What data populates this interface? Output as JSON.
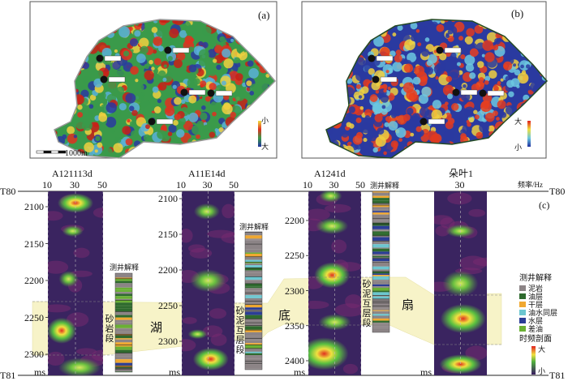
{
  "map_a": {
    "label": "(a)",
    "scale_label": "1000m",
    "colorbar_top": "小",
    "colorbar_bottom": "大"
  },
  "map_b": {
    "label": "(b)",
    "colorbar_top": "大",
    "colorbar_bottom": "小"
  },
  "section": {
    "label": "(c)",
    "top_horizon": "T80",
    "bottom_horizon": "T81",
    "freq_axis_label": "频率/Hz",
    "time_unit": "ms",
    "log_title": "测井解释",
    "facies": [
      "湖",
      "底",
      "扇"
    ],
    "wells": [
      {
        "name": "A121113d",
        "freq_ticks": [
          "10",
          "30",
          "50"
        ],
        "time_ticks": [
          "2100",
          "2150",
          "2200",
          "2250",
          "2300"
        ],
        "interval": "砂岩段"
      },
      {
        "name": "A11E14d",
        "freq_ticks": [
          "10",
          "30",
          "50"
        ],
        "time_ticks": [
          "2100",
          "2150",
          "2200",
          "2250",
          "2300"
        ],
        "interval": "砂泥互层段"
      },
      {
        "name": "A1241d",
        "freq_ticks": [
          "10",
          "30",
          "50"
        ],
        "time_ticks": [
          "2200",
          "2250",
          "2300",
          "2350",
          "2400"
        ],
        "interval": "砂泥互层段"
      },
      {
        "name": "朵叶1",
        "freq_ticks": [
          "30"
        ]
      }
    ]
  },
  "legend": {
    "title": "测井解释",
    "items": [
      {
        "label": "泥岩",
        "color": "#8c8486"
      },
      {
        "label": "油层",
        "color": "#2e6a2e"
      },
      {
        "label": "干层",
        "color": "#f0a830"
      },
      {
        "label": "油水同层",
        "color": "#6cc6d0"
      },
      {
        "label": "水层",
        "color": "#2b3d96"
      },
      {
        "label": "差油",
        "color": "#6ab034"
      }
    ],
    "colorbar_title": "时频剖面",
    "colorbar_top": "大",
    "colorbar_bottom": "小"
  }
}
